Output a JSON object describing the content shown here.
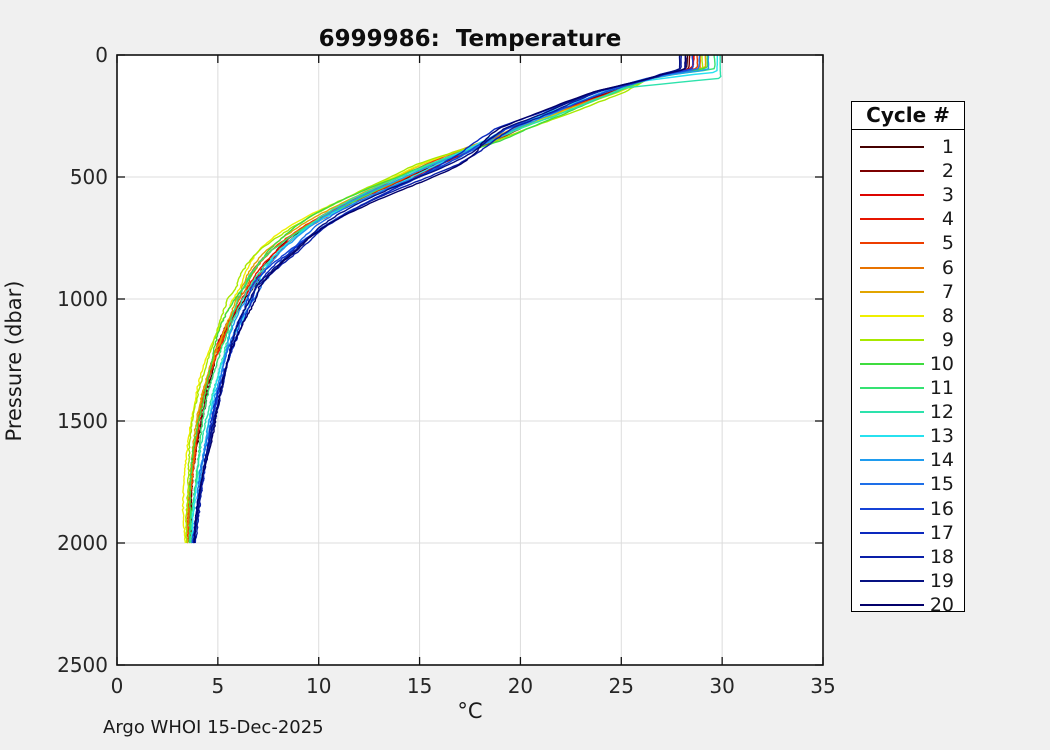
{
  "title": "6999986:  Temperature",
  "footer": "Argo WHOI 15-Dec-2025",
  "axes": {
    "xlabel": "°C",
    "ylabel": "Pressure (dbar)",
    "x_ticks": [
      0,
      5,
      10,
      15,
      20,
      25,
      30,
      35
    ],
    "y_ticks": [
      0,
      500,
      1000,
      1500,
      2000,
      2500
    ],
    "xlim": [
      0,
      35
    ],
    "ylim": [
      0,
      2500
    ]
  },
  "legend": {
    "title": "Cycle #"
  },
  "style": {
    "figure_bg": "#f0f0f0",
    "plot_bg": "#ffffff",
    "grid_color": "#dcdcdc",
    "axis_color": "#111111",
    "tick_label_color": "#262626"
  },
  "chart_data": {
    "type": "line",
    "title": "6999986:  Temperature",
    "xlabel": "°C",
    "ylabel": "Pressure (dbar)",
    "xlim": [
      0,
      35
    ],
    "ylim": [
      0,
      2500
    ],
    "y_inverted": true,
    "grid": true,
    "legend_title": "Cycle #",
    "legend_position": "right-outside",
    "max_pressure_dbar": 2000,
    "pressure_levels": [
      0,
      20,
      40,
      60,
      80,
      100,
      150,
      200,
      250,
      300,
      350,
      400,
      450,
      500,
      550,
      600,
      650,
      700,
      750,
      800,
      850,
      900,
      950,
      1000,
      1100,
      1200,
      1300,
      1400,
      1500,
      1600,
      1700,
      1800,
      1900,
      2000
    ],
    "base_temperature_profile": [
      29.2,
      29.2,
      29.1,
      28.6,
      27.2,
      26.2,
      24.5,
      22.9,
      21.4,
      19.8,
      18.6,
      17.2,
      15.9,
      14.6,
      13.2,
      11.9,
      10.7,
      9.7,
      8.9,
      8.2,
      7.6,
      7.1,
      6.7,
      6.4,
      5.8,
      5.35,
      5.0,
      4.7,
      4.45,
      4.25,
      4.05,
      3.9,
      3.78,
      3.72
    ],
    "series": [
      {
        "name": "1",
        "color": "#460000",
        "surface_temp": 28.3,
        "mixed_layer_dbar": 50,
        "upper_offset": 0.3,
        "mid_offset": -0.2,
        "deep_offset": -0.25
      },
      {
        "name": "2",
        "color": "#7d0000",
        "surface_temp": 28.4,
        "mixed_layer_dbar": 55,
        "upper_offset": 0.2,
        "mid_offset": -0.3,
        "deep_offset": -0.3
      },
      {
        "name": "3",
        "color": "#dc0400",
        "surface_temp": 28.6,
        "mixed_layer_dbar": 45,
        "upper_offset": 0.4,
        "mid_offset": -0.1,
        "deep_offset": -0.38
      },
      {
        "name": "4",
        "color": "#e61500",
        "surface_temp": 28.5,
        "mixed_layer_dbar": 60,
        "upper_offset": 0.3,
        "mid_offset": -0.2,
        "deep_offset": -0.33
      },
      {
        "name": "5",
        "color": "#ed3e00",
        "surface_temp": 28.7,
        "mixed_layer_dbar": 50,
        "upper_offset": 0.2,
        "mid_offset": -0.4,
        "deep_offset": -0.4
      },
      {
        "name": "6",
        "color": "#e87300",
        "surface_temp": 28.9,
        "mixed_layer_dbar": 55,
        "upper_offset": 0.3,
        "mid_offset": -0.5,
        "deep_offset": -0.4
      },
      {
        "name": "7",
        "color": "#e2a500",
        "surface_temp": 29.1,
        "mixed_layer_dbar": 48,
        "upper_offset": 0.1,
        "mid_offset": -0.6,
        "deep_offset": -0.5
      },
      {
        "name": "8",
        "color": "#efef00",
        "surface_temp": 29.2,
        "mixed_layer_dbar": 52,
        "upper_offset": 0.4,
        "mid_offset": -0.9,
        "deep_offset": -0.8
      },
      {
        "name": "9",
        "color": "#a8e800",
        "surface_temp": 29.0,
        "mixed_layer_dbar": 58,
        "upper_offset": 0.5,
        "mid_offset": -1.1,
        "deep_offset": -0.7
      },
      {
        "name": "10",
        "color": "#3fdc3f",
        "surface_temp": 29.3,
        "mixed_layer_dbar": 50,
        "upper_offset": 0.2,
        "mid_offset": -0.7,
        "deep_offset": -0.45
      },
      {
        "name": "11",
        "color": "#35e273",
        "surface_temp": 29.6,
        "mixed_layer_dbar": 55,
        "upper_offset": 0.1,
        "mid_offset": -0.4,
        "deep_offset": -0.2
      },
      {
        "name": "12",
        "color": "#2de2ac",
        "surface_temp": 29.9,
        "mixed_layer_dbar": 95,
        "upper_offset": 0.0,
        "mid_offset": -0.2,
        "deep_offset": -0.05
      },
      {
        "name": "13",
        "color": "#27e1ef",
        "surface_temp": 29.7,
        "mixed_layer_dbar": 70,
        "upper_offset": -0.1,
        "mid_offset": 0.0,
        "deep_offset": 0.1
      },
      {
        "name": "14",
        "color": "#1f9cef",
        "surface_temp": 29.4,
        "mixed_layer_dbar": 60,
        "upper_offset": -0.3,
        "mid_offset": -0.3,
        "deep_offset": 0.15
      },
      {
        "name": "15",
        "color": "#1e6fe8",
        "surface_temp": 28.9,
        "mixed_layer_dbar": 55,
        "upper_offset": -0.4,
        "mid_offset": 0.3,
        "deep_offset": 0.22
      },
      {
        "name": "16",
        "color": "#1542d6",
        "surface_temp": 28.5,
        "mixed_layer_dbar": 50,
        "upper_offset": -0.5,
        "mid_offset": 0.5,
        "deep_offset": 0.28
      },
      {
        "name": "17",
        "color": "#0c29be",
        "surface_temp": 28.2,
        "mixed_layer_dbar": 45,
        "upper_offset": -0.7,
        "mid_offset": 0.4,
        "deep_offset": 0.3
      },
      {
        "name": "18",
        "color": "#0a1fa8",
        "surface_temp": 28.0,
        "mixed_layer_dbar": 55,
        "upper_offset": -0.6,
        "mid_offset": 0.8,
        "deep_offset": 0.35
      },
      {
        "name": "19",
        "color": "#061182",
        "surface_temp": 27.9,
        "mixed_layer_dbar": 50,
        "upper_offset": -0.9,
        "mid_offset": 0.6,
        "deep_offset": 0.3
      },
      {
        "name": "20",
        "color": "#03006b",
        "surface_temp": 28.1,
        "mixed_layer_dbar": 60,
        "upper_offset": -0.8,
        "mid_offset": 1.0,
        "deep_offset": 0.35
      }
    ]
  }
}
